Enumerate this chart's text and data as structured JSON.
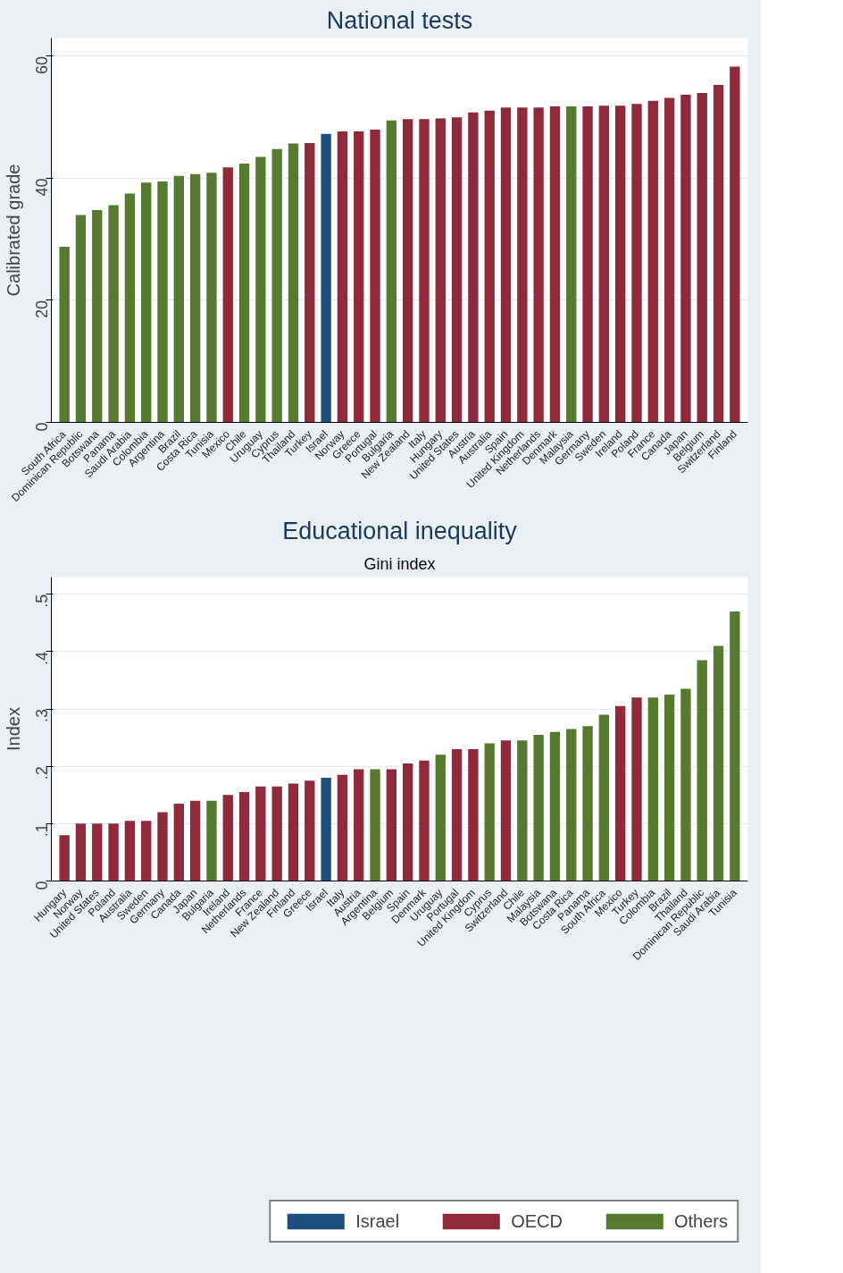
{
  "chart_data": [
    {
      "type": "bar",
      "title": "National tests",
      "ylabel": "Calibrated grade",
      "categories": [
        "South Africa",
        "Dominican Republic",
        "Botswana",
        "Panama",
        "Saudi Arabia",
        "Colombia",
        "Argentina",
        "Brazil",
        "Costa Rica",
        "Tunisia",
        "Mexico",
        "Chile",
        "Uruguay",
        "Cyprus",
        "Thailand",
        "Turkey",
        "Israel",
        "Norway",
        "Greece",
        "Portugal",
        "Bulgaria",
        "New Zealand",
        "Italy",
        "Hungary",
        "United States",
        "Austria",
        "Australia",
        "Spain",
        "United Kingdom",
        "Netherlands",
        "Denmark",
        "Malaysia",
        "Germany",
        "Sweden",
        "Ireland",
        "Poland",
        "France",
        "Canada",
        "Japan",
        "Belgium",
        "Switzerland",
        "Finland"
      ],
      "values": [
        28.8,
        34.0,
        34.8,
        35.6,
        37.5,
        39.3,
        39.5,
        40.4,
        40.7,
        40.9,
        41.8,
        42.4,
        43.5,
        44.8,
        45.7,
        45.8,
        47.3,
        47.7,
        47.7,
        48.0,
        49.5,
        49.7,
        49.7,
        49.8,
        50.0,
        50.8,
        51.1,
        51.6,
        51.6,
        51.6,
        51.8,
        51.8,
        51.8,
        51.9,
        51.9,
        52.2,
        52.7,
        53.2,
        53.7,
        54.0,
        55.3,
        58.3
      ],
      "colors": [
        "#557a30",
        "#557a30",
        "#557a30",
        "#557a30",
        "#557a30",
        "#557a30",
        "#557a30",
        "#557a30",
        "#557a30",
        "#557a30",
        "#8e2a3a",
        "#557a30",
        "#557a30",
        "#557a30",
        "#557a30",
        "#8e2a3a",
        "#1c4f7e",
        "#8e2a3a",
        "#8e2a3a",
        "#8e2a3a",
        "#557a30",
        "#8e2a3a",
        "#8e2a3a",
        "#8e2a3a",
        "#8e2a3a",
        "#8e2a3a",
        "#8e2a3a",
        "#8e2a3a",
        "#8e2a3a",
        "#8e2a3a",
        "#8e2a3a",
        "#557a30",
        "#8e2a3a",
        "#8e2a3a",
        "#8e2a3a",
        "#8e2a3a",
        "#8e2a3a",
        "#8e2a3a",
        "#8e2a3a",
        "#8e2a3a",
        "#8e2a3a",
        "#8e2a3a"
      ],
      "ylim": [
        0,
        63
      ],
      "yticks": [
        0,
        20,
        40,
        60
      ],
      "grid": "y",
      "legend": false
    },
    {
      "type": "bar",
      "title": "Educational inequality",
      "subtitle": "Gini index",
      "ylabel": "Index",
      "categories": [
        "Hungary",
        "Norway",
        "United States",
        "Poland",
        "Australia",
        "Sweden",
        "Germany",
        "Canada",
        "Japan",
        "Bulgaria",
        "Ireland",
        "Netherlands",
        "France",
        "New Zealand",
        "Finland",
        "Greece",
        "Israel",
        "Italy",
        "Austria",
        "Argentina",
        "Belgium",
        "Spain",
        "Denmark",
        "Uruguay",
        "Portugal",
        "United Kingdom",
        "Cyprus",
        "Switzerland",
        "Chile",
        "Malaysia",
        "Botswana",
        "Costa Rica",
        "Panama",
        "South Africa",
        "Mexico",
        "Turkey",
        "Colombia",
        "Brazil",
        "Thailand",
        "Dominican Republic",
        "Saudi Arabia",
        "Tunisia"
      ],
      "series": [
        {
          "name": "Israel",
          "color": "#1c4f7e",
          "values": [
            null,
            null,
            null,
            null,
            null,
            null,
            null,
            null,
            null,
            null,
            null,
            null,
            null,
            null,
            null,
            null,
            0.18,
            null,
            null,
            null,
            null,
            null,
            null,
            null,
            null,
            null,
            null,
            null,
            null,
            null,
            null,
            null,
            null,
            null,
            null,
            null,
            null,
            null,
            null,
            null,
            null,
            null
          ]
        },
        {
          "name": "OECD",
          "color": "#8e2a3a",
          "values": [
            0.08,
            0.1,
            0.1,
            0.1,
            0.105,
            0.105,
            0.12,
            0.135,
            0.14,
            null,
            0.15,
            0.155,
            0.165,
            0.165,
            0.17,
            0.175,
            null,
            0.185,
            0.195,
            null,
            0.195,
            0.205,
            0.21,
            null,
            0.23,
            0.23,
            null,
            0.245,
            null,
            null,
            null,
            null,
            null,
            null,
            0.305,
            0.32,
            null,
            null,
            null,
            null,
            null,
            null
          ]
        },
        {
          "name": "Others",
          "color": "#557a30",
          "values": [
            null,
            null,
            null,
            null,
            null,
            null,
            null,
            null,
            null,
            0.14,
            null,
            null,
            null,
            null,
            null,
            null,
            null,
            null,
            null,
            0.195,
            null,
            null,
            null,
            0.22,
            null,
            null,
            0.24,
            null,
            0.245,
            0.255,
            0.26,
            0.265,
            0.27,
            0.29,
            null,
            null,
            0.32,
            0.325,
            0.335,
            0.385,
            0.41,
            0.47
          ]
        }
      ],
      "ylim": [
        0,
        0.53
      ],
      "yticks": [
        0,
        {
          "value": 0.1,
          "label": ".1"
        },
        {
          "value": 0.2,
          "label": ".2"
        },
        {
          "value": 0.3,
          "label": ".3"
        },
        {
          "value": 0.4,
          "label": ".4"
        },
        {
          "value": 0.5,
          "label": ".5"
        }
      ],
      "grid": "y",
      "legend": "bottom"
    }
  ]
}
